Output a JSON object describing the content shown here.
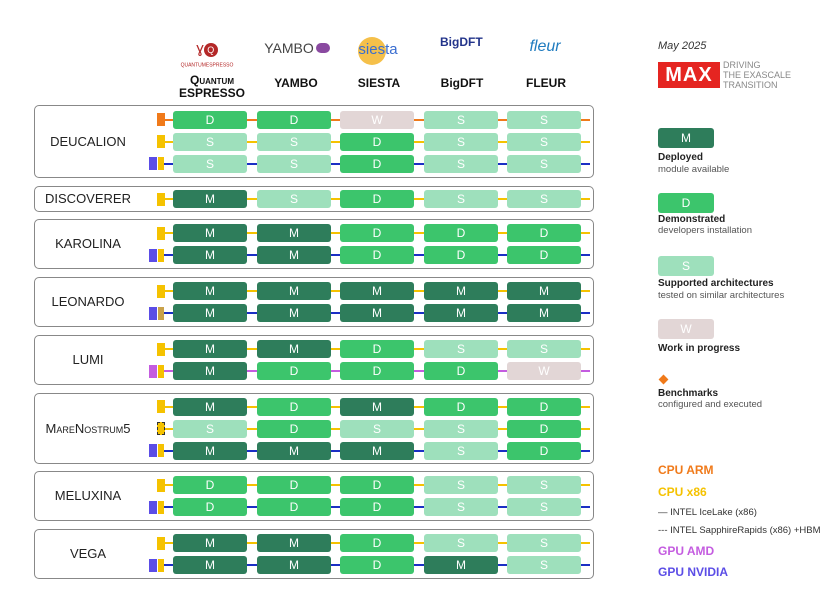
{
  "codes": [
    {
      "name": "QUANTUM ESPRESSO",
      "line1": "Quantum",
      "line2": "ESPRESSO",
      "logo": "QUANTUMESPRESSO"
    },
    {
      "name": "YAMBO",
      "logo": "YAMBO"
    },
    {
      "name": "SIESTA",
      "logo": "siesta"
    },
    {
      "name": "BigDFT",
      "logo": "BigDFT"
    },
    {
      "name": "FLEUR",
      "logo": "fleur"
    }
  ],
  "header": {
    "date": "May 2025",
    "max_logo": "MAX",
    "tagline": [
      "DRIVING",
      "THE EXASCALE",
      "TRANSITION"
    ]
  },
  "machines": [
    {
      "name": "DEUCALION",
      "rows": [
        {
          "arch": "cpu-arm",
          "cells": [
            "D",
            "D",
            "W",
            "S",
            "S"
          ]
        },
        {
          "arch": "cpu-x86",
          "cells": [
            "S",
            "S",
            "D",
            "S",
            "S"
          ]
        },
        {
          "arch": "gpu-nvidia",
          "cells": [
            "S",
            "S",
            "D",
            "S",
            "S"
          ]
        }
      ]
    },
    {
      "name": "DISCOVERER",
      "rows": [
        {
          "arch": "cpu-x86",
          "cells": [
            "M",
            "S",
            "D",
            "S",
            "S"
          ]
        }
      ]
    },
    {
      "name": "KAROLINA",
      "rows": [
        {
          "arch": "cpu-x86",
          "cells": [
            "M",
            "M",
            "D",
            "D",
            "D"
          ]
        },
        {
          "arch": "gpu-nvidia",
          "cells": [
            "M",
            "M",
            "D",
            "D",
            "D"
          ]
        }
      ]
    },
    {
      "name": "LEONARDO",
      "rows": [
        {
          "arch": "cpu-x86",
          "cells": [
            "M",
            "M",
            "M",
            "M",
            "M"
          ]
        },
        {
          "arch": "gpu-nvidia",
          "cells": [
            "M",
            "M",
            "M",
            "M",
            "M"
          ]
        }
      ]
    },
    {
      "name": "LUMI",
      "rows": [
        {
          "arch": "cpu-x86",
          "cells": [
            "M",
            "M",
            "D",
            "S",
            "S"
          ]
        },
        {
          "arch": "gpu-amd",
          "cells": [
            "M",
            "D",
            "D",
            "D",
            "W"
          ]
        }
      ]
    },
    {
      "name": "MareNostrum5",
      "rows": [
        {
          "arch": "cpu-x86",
          "cells": [
            "M",
            "D",
            "M",
            "D",
            "D"
          ]
        },
        {
          "arch": "cpu-x86-sapphire",
          "cells": [
            "S",
            "D",
            "S",
            "S",
            "D"
          ]
        },
        {
          "arch": "gpu-nvidia",
          "cells": [
            "M",
            "M",
            "M",
            "S",
            "D"
          ]
        }
      ]
    },
    {
      "name": "MELUXINA",
      "rows": [
        {
          "arch": "cpu-x86",
          "cells": [
            "D",
            "D",
            "D",
            "S",
            "S"
          ]
        },
        {
          "arch": "gpu-nvidia",
          "cells": [
            "D",
            "D",
            "D",
            "S",
            "S"
          ]
        }
      ]
    },
    {
      "name": "VEGA",
      "rows": [
        {
          "arch": "cpu-x86",
          "cells": [
            "M",
            "M",
            "D",
            "S",
            "S"
          ]
        },
        {
          "arch": "gpu-nvidia",
          "cells": [
            "M",
            "M",
            "D",
            "M",
            "S"
          ]
        }
      ]
    }
  ],
  "legend": {
    "status": [
      {
        "key": "M",
        "title": "Deployed",
        "sub": "module available",
        "color": "#2e7d5b"
      },
      {
        "key": "D",
        "title": "Demonstrated",
        "sub": "developers installation",
        "color": "#3cc56c"
      },
      {
        "key": "S",
        "title": "Supported architectures",
        "sub": "tested on similar architectures",
        "color": "#9ee0bc"
      },
      {
        "key": "W",
        "title": "Work in progress",
        "sub": "",
        "color": "#e2d6d6"
      }
    ],
    "benchmark": {
      "title": "Benchmarks",
      "sub": "configured and executed",
      "color": "#f07a1a"
    },
    "arch": [
      {
        "label": "CPU ARM",
        "color": "#f07a1a"
      },
      {
        "label": "CPU x86",
        "color": "#f5c200"
      },
      {
        "label": "— INTEL IceLake (x86)",
        "color": "#333333"
      },
      {
        "label": "--- INTEL SapphireRapids (x86) +HBM",
        "color": "#333333"
      },
      {
        "label": "GPU AMD",
        "color": "#c45ce0"
      },
      {
        "label": "GPU NVIDIA",
        "color": "#5b4de6"
      }
    ]
  },
  "colors": {
    "cpu-arm": "#f07a1a",
    "cpu-x86": "#f5c200",
    "cpu-x86-sapphire": "#f5c200",
    "gpu-amd": "#c45ce0",
    "gpu-nvidia": "#5b4de6",
    "line-gpu": "#1b2fc4"
  }
}
